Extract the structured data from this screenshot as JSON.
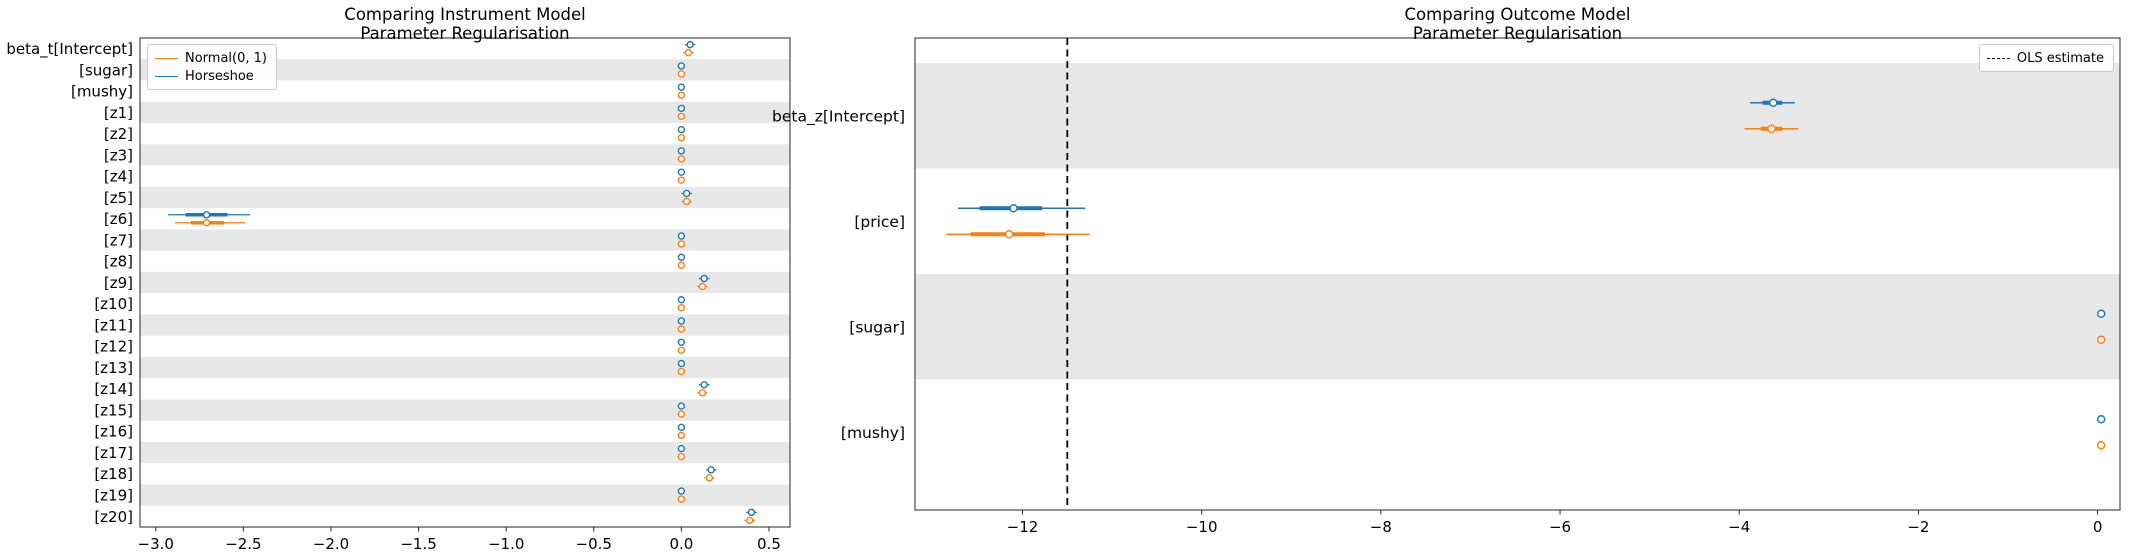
{
  "figure": {
    "background": "#ffffff",
    "band_color": "#e7e7e7",
    "text_color": "#000000"
  },
  "chart_data": [
    {
      "type": "forest",
      "title_lines": [
        "Comparing Instrument Model",
        "Parameter Regularisation"
      ],
      "xlim": [
        -3.09,
        0.62
      ],
      "xticks": [
        -3.0,
        -2.5,
        -2.0,
        -1.5,
        -1.0,
        -0.5,
        0.0,
        0.5
      ],
      "xtick_labels": [
        "−3.0",
        "−2.5",
        "−2.0",
        "−1.5",
        "−1.0",
        "−0.5",
        "0.0",
        "0.5"
      ],
      "shaded_rows": "odd",
      "grid": false,
      "legend": {
        "position": "upper-left",
        "entries": [
          {
            "label": "Normal(0, 1)",
            "color": "#ff7f0e",
            "dashed": false
          },
          {
            "label": "Horseshoe",
            "color": "#1f77b4",
            "dashed": false
          }
        ]
      },
      "series": [
        {
          "name": "Horseshoe",
          "key": "horseshoe",
          "color": "#1f77b4"
        },
        {
          "name": "Normal(0, 1)",
          "key": "normal",
          "color": "#ff7f0e"
        }
      ],
      "rows": [
        {
          "label": "beta_t[Intercept]",
          "horseshoe": [
            0.05,
            0.02,
            0.08,
            0.04,
            0.06
          ],
          "normal": [
            0.04,
            0.01,
            0.07,
            0.03,
            0.05
          ]
        },
        {
          "label": "[sugar]",
          "horseshoe": [
            0.0,
            -0.02,
            0.02,
            -0.01,
            0.01
          ],
          "normal": [
            0.0,
            -0.02,
            0.02,
            -0.01,
            0.01
          ]
        },
        {
          "label": "[mushy]",
          "horseshoe": [
            0.0,
            -0.02,
            0.02,
            -0.01,
            0.01
          ],
          "normal": [
            0.0,
            -0.02,
            0.02,
            -0.01,
            0.01
          ]
        },
        {
          "label": "[z1]",
          "horseshoe": [
            0.0,
            -0.02,
            0.02,
            -0.01,
            0.01
          ],
          "normal": [
            0.0,
            -0.02,
            0.02,
            -0.01,
            0.01
          ]
        },
        {
          "label": "[z2]",
          "horseshoe": [
            0.0,
            -0.02,
            0.02,
            -0.01,
            0.01
          ],
          "normal": [
            0.0,
            -0.02,
            0.02,
            -0.01,
            0.01
          ]
        },
        {
          "label": "[z3]",
          "horseshoe": [
            0.0,
            -0.02,
            0.02,
            -0.01,
            0.01
          ],
          "normal": [
            0.0,
            -0.02,
            0.02,
            -0.01,
            0.01
          ]
        },
        {
          "label": "[z4]",
          "horseshoe": [
            0.0,
            -0.02,
            0.02,
            -0.01,
            0.01
          ],
          "normal": [
            0.0,
            -0.02,
            0.02,
            -0.01,
            0.01
          ]
        },
        {
          "label": "[z5]",
          "horseshoe": [
            0.03,
            0.0,
            0.06,
            0.02,
            0.04
          ],
          "normal": [
            0.03,
            0.0,
            0.06,
            0.02,
            0.04
          ]
        },
        {
          "label": "[z6]",
          "horseshoe": [
            -2.71,
            -2.93,
            -2.46,
            -2.83,
            -2.59
          ],
          "normal": [
            -2.71,
            -2.89,
            -2.49,
            -2.8,
            -2.61
          ]
        },
        {
          "label": "[z7]",
          "horseshoe": [
            0.0,
            -0.02,
            0.02,
            -0.01,
            0.01
          ],
          "normal": [
            0.0,
            -0.02,
            0.02,
            -0.01,
            0.01
          ]
        },
        {
          "label": "[z8]",
          "horseshoe": [
            0.0,
            -0.02,
            0.02,
            -0.01,
            0.01
          ],
          "normal": [
            0.0,
            -0.02,
            0.02,
            -0.01,
            0.01
          ]
        },
        {
          "label": "[z9]",
          "horseshoe": [
            0.13,
            0.1,
            0.16,
            0.12,
            0.14
          ],
          "normal": [
            0.12,
            0.09,
            0.15,
            0.11,
            0.13
          ]
        },
        {
          "label": "[z10]",
          "horseshoe": [
            0.0,
            -0.02,
            0.02,
            -0.01,
            0.01
          ],
          "normal": [
            0.0,
            -0.02,
            0.02,
            -0.01,
            0.01
          ]
        },
        {
          "label": "[z11]",
          "horseshoe": [
            0.0,
            -0.02,
            0.02,
            -0.01,
            0.01
          ],
          "normal": [
            0.0,
            -0.02,
            0.02,
            -0.01,
            0.01
          ]
        },
        {
          "label": "[z12]",
          "horseshoe": [
            0.0,
            -0.02,
            0.02,
            -0.01,
            0.01
          ],
          "normal": [
            0.0,
            -0.02,
            0.02,
            -0.01,
            0.01
          ]
        },
        {
          "label": "[z13]",
          "horseshoe": [
            0.0,
            -0.02,
            0.02,
            -0.01,
            0.01
          ],
          "normal": [
            0.0,
            -0.02,
            0.02,
            -0.01,
            0.01
          ]
        },
        {
          "label": "[z14]",
          "horseshoe": [
            0.13,
            0.1,
            0.16,
            0.12,
            0.14
          ],
          "normal": [
            0.12,
            0.09,
            0.15,
            0.11,
            0.13
          ]
        },
        {
          "label": "[z15]",
          "horseshoe": [
            0.0,
            -0.02,
            0.02,
            -0.01,
            0.01
          ],
          "normal": [
            0.0,
            -0.02,
            0.02,
            -0.01,
            0.01
          ]
        },
        {
          "label": "[z16]",
          "horseshoe": [
            0.0,
            -0.02,
            0.02,
            -0.01,
            0.01
          ],
          "normal": [
            0.0,
            -0.02,
            0.02,
            -0.01,
            0.01
          ]
        },
        {
          "label": "[z17]",
          "horseshoe": [
            0.0,
            -0.02,
            0.02,
            -0.01,
            0.01
          ],
          "normal": [
            0.0,
            -0.02,
            0.02,
            -0.01,
            0.01
          ]
        },
        {
          "label": "[z18]",
          "horseshoe": [
            0.17,
            0.14,
            0.2,
            0.16,
            0.18
          ],
          "normal": [
            0.16,
            0.13,
            0.19,
            0.15,
            0.17
          ]
        },
        {
          "label": "[z19]",
          "horseshoe": [
            0.0,
            -0.02,
            0.02,
            -0.01,
            0.01
          ],
          "normal": [
            0.0,
            -0.02,
            0.02,
            -0.01,
            0.01
          ]
        },
        {
          "label": "[z20]",
          "horseshoe": [
            0.4,
            0.37,
            0.43,
            0.39,
            0.41
          ],
          "normal": [
            0.39,
            0.36,
            0.42,
            0.38,
            0.4
          ]
        }
      ]
    },
    {
      "type": "forest",
      "title_lines": [
        "Comparing Outcome Model",
        "Parameter Regularisation"
      ],
      "xlim": [
        -13.2,
        0.25
      ],
      "xticks": [
        -12,
        -10,
        -8,
        -6,
        -4,
        -2,
        0
      ],
      "xtick_labels": [
        "−12",
        "−10",
        "−8",
        "−6",
        "−4",
        "−2",
        "0"
      ],
      "shaded_rows": "even",
      "grid": false,
      "vline": {
        "value": -11.5,
        "color": "#000000",
        "style": "dashed"
      },
      "legend": {
        "position": "upper-right",
        "entries": [
          {
            "label": "OLS estimate",
            "color": "#000000",
            "dashed": true
          }
        ]
      },
      "series": [
        {
          "name": "Horseshoe",
          "key": "horseshoe",
          "color": "#1f77b4"
        },
        {
          "name": "Normal(0, 1)",
          "key": "normal",
          "color": "#ff7f0e"
        }
      ],
      "rows": [
        {
          "label": "beta_z[Intercept]",
          "horseshoe": [
            -3.62,
            -3.88,
            -3.38,
            -3.74,
            -3.52
          ],
          "normal": [
            -3.64,
            -3.94,
            -3.34,
            -3.76,
            -3.52
          ]
        },
        {
          "label": "[price]",
          "horseshoe": [
            -12.1,
            -12.72,
            -11.3,
            -12.48,
            -11.78
          ],
          "normal": [
            -12.15,
            -12.85,
            -11.25,
            -12.58,
            -11.75
          ]
        },
        {
          "label": "[sugar]",
          "horseshoe": [
            0.04,
            0.02,
            0.06,
            0.03,
            0.05
          ],
          "normal": [
            0.04,
            0.02,
            0.06,
            0.03,
            0.05
          ]
        },
        {
          "label": "[mushy]",
          "horseshoe": [
            0.04,
            0.02,
            0.06,
            0.03,
            0.05
          ],
          "normal": [
            0.04,
            0.02,
            0.06,
            0.03,
            0.05
          ]
        }
      ]
    }
  ]
}
